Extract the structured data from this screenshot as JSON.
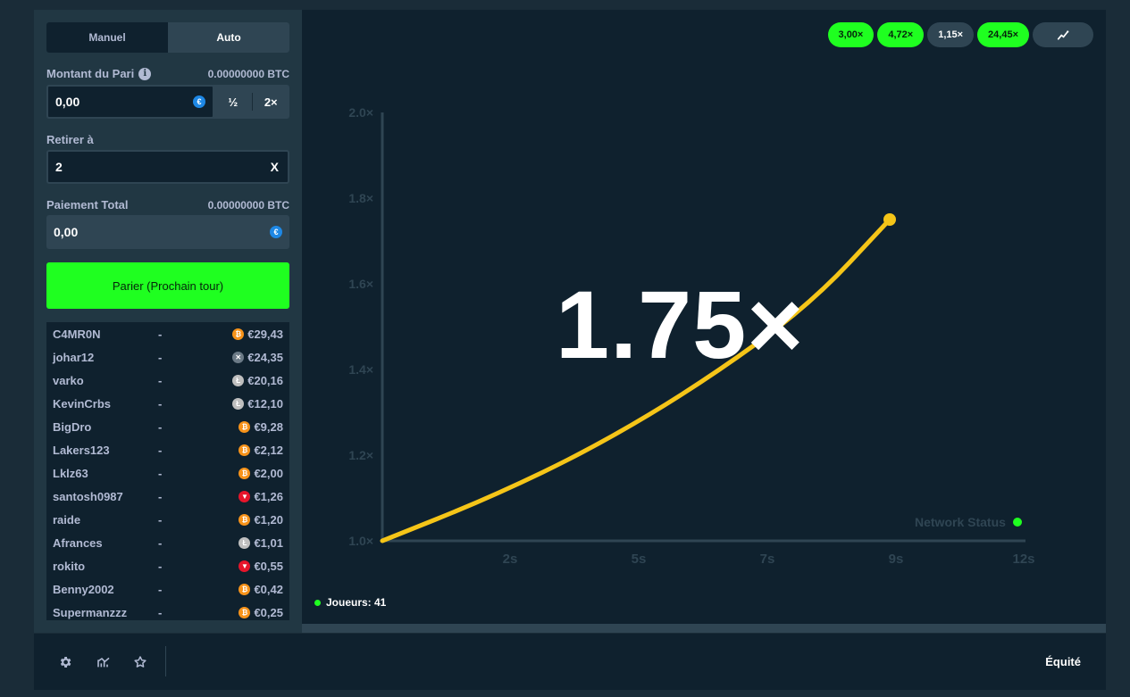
{
  "sidebar": {
    "tabs": [
      {
        "label": "Manuel",
        "active": false
      },
      {
        "label": "Auto",
        "active": true
      }
    ],
    "bet_amount": {
      "label": "Montant du Pari",
      "btc_value": "0.00000000 BTC",
      "value": "0,00",
      "half_label": "½",
      "double_label": "2×"
    },
    "cashout": {
      "label": "Retirer à",
      "value": "2",
      "suffix": "X"
    },
    "payout": {
      "label": "Paiement Total",
      "btc_value": "0.00000000 BTC",
      "value": "0,00"
    },
    "bet_button": "Parier (Prochain tour)",
    "players": [
      {
        "name": "C4MR0N",
        "dash": "-",
        "coin": "btc",
        "amount": "€29,43"
      },
      {
        "name": "johar12",
        "dash": "-",
        "coin": "xrp",
        "amount": "€24,35"
      },
      {
        "name": "varko",
        "dash": "-",
        "coin": "ltc",
        "amount": "€20,16"
      },
      {
        "name": "KevinCrbs",
        "dash": "-",
        "coin": "ltc",
        "amount": "€12,10"
      },
      {
        "name": "BigDro",
        "dash": "-",
        "coin": "btc",
        "amount": "€9,28"
      },
      {
        "name": "Lakers123",
        "dash": "-",
        "coin": "btc",
        "amount": "€2,12"
      },
      {
        "name": "Lklz63",
        "dash": "-",
        "coin": "btc",
        "amount": "€2,00"
      },
      {
        "name": "santosh0987",
        "dash": "-",
        "coin": "trx",
        "amount": "€1,26"
      },
      {
        "name": "raide",
        "dash": "-",
        "coin": "btc",
        "amount": "€1,20"
      },
      {
        "name": "Afrances",
        "dash": "-",
        "coin": "ltc",
        "amount": "€1,01"
      },
      {
        "name": "rokito",
        "dash": "-",
        "coin": "trx",
        "amount": "€0,55"
      },
      {
        "name": "Benny2002",
        "dash": "-",
        "coin": "btc",
        "amount": "€0,42"
      },
      {
        "name": "Supermanzzz",
        "dash": "-",
        "coin": "btc",
        "amount": "€0,25"
      }
    ]
  },
  "game": {
    "history": [
      {
        "label": "3,00×",
        "style": "green"
      },
      {
        "label": "4,72×",
        "style": "green"
      },
      {
        "label": "1,15×",
        "style": "grey"
      },
      {
        "label": "24,45×",
        "style": "green"
      }
    ],
    "history_icon": "trend-chart-icon",
    "multiplier": "1.75×",
    "network_status": "Network Status",
    "players_count": "Joueurs: 41",
    "colors": {
      "accent_green": "#1fff20",
      "curve": "#f5c518",
      "bg": "#0f212e",
      "panel": "#213743"
    }
  },
  "chart_data": {
    "type": "line",
    "y_ticks": [
      "1.0×",
      "1.2×",
      "1.4×",
      "1.6×",
      "1.8×",
      "2.0×"
    ],
    "x_ticks": [
      "2s",
      "5s",
      "7s",
      "9s",
      "12s"
    ],
    "ylim": [
      1.0,
      2.0
    ],
    "current_multiplier": 1.75,
    "series": [
      {
        "x": [
          0,
          2,
          4,
          6,
          8,
          9.5
        ],
        "y": [
          1.0,
          1.1,
          1.22,
          1.37,
          1.55,
          1.75
        ]
      }
    ]
  },
  "footer": {
    "icons": [
      "gear-icon",
      "stats-icon",
      "star-icon"
    ],
    "fairness": "Équité"
  }
}
